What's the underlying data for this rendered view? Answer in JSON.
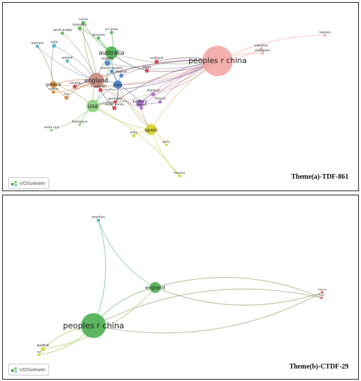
{
  "branding": {
    "vosviewer_label": "VOSviewer"
  },
  "panel_a": {
    "caption": "Theme(a)-TDF-861",
    "nodes": [
      {
        "id": "china",
        "label": "peoples r china",
        "color": "#f2a7a4"
      },
      {
        "id": "australia",
        "label": "australia",
        "color": "#4caf50"
      },
      {
        "id": "england",
        "label": "england",
        "color": "#c98a7f"
      },
      {
        "id": "usa",
        "label": "usa",
        "color": "#8cd07a"
      },
      {
        "id": "spain",
        "label": "spain",
        "color": "#d8d42c"
      },
      {
        "id": "italy",
        "label": "italy",
        "color": "#4a7fc7"
      },
      {
        "id": "turkey",
        "label": "turkey",
        "color": "#a56ad1"
      },
      {
        "id": "greece",
        "label": "greece",
        "color": "#d7873a"
      },
      {
        "id": "russia",
        "label": "russia",
        "color": "#5cb65c"
      },
      {
        "id": "malaysia",
        "label": "malaysia",
        "color": "#5cb65c"
      },
      {
        "id": "saudi_arabia",
        "label": "saudi arabia",
        "color": "#5cb65c"
      },
      {
        "id": "slovenia",
        "label": "slovenia",
        "color": "#5cb65c"
      },
      {
        "id": "sri_lanka",
        "label": "sri lanka",
        "color": "#5cb65c"
      },
      {
        "id": "bahrain",
        "label": "bahrain",
        "color": "#4fb3c9"
      },
      {
        "id": "india",
        "label": "india",
        "color": "#4fb3c9"
      },
      {
        "id": "poland",
        "label": "poland",
        "color": "#4fb3c9"
      },
      {
        "id": "croatia",
        "label": "croatia",
        "color": "#4a7fc7"
      },
      {
        "id": "france",
        "label": "france",
        "color": "#4a7fc7"
      },
      {
        "id": "czech_republic",
        "label": "czech republic",
        "color": "#4a7fc7"
      },
      {
        "id": "sweden",
        "label": "sweden",
        "color": "#c44"
      },
      {
        "id": "canada",
        "label": "canada",
        "color": "#c44"
      },
      {
        "id": "cyprus",
        "label": "cyprus",
        "color": "#d7873a"
      },
      {
        "id": "iran",
        "label": "iran",
        "color": "#d7873a"
      },
      {
        "id": "germany",
        "label": "germany",
        "color": "#c44"
      },
      {
        "id": "south_korea",
        "label": "south korea",
        "color": "#c44"
      },
      {
        "id": "japan",
        "label": "japan",
        "color": "#c44"
      },
      {
        "id": "scotland",
        "label": "scotland",
        "color": "#c44"
      },
      {
        "id": "finland",
        "label": "finland",
        "color": "#a56ad1"
      },
      {
        "id": "thailand",
        "label": "thailand",
        "color": "#a56ad1"
      },
      {
        "id": "taiwan",
        "label": "taiwan",
        "color": "#a56ad1"
      },
      {
        "id": "botswana",
        "label": "botswana",
        "color": "#8cd07a"
      },
      {
        "id": "costa_rica",
        "label": "costa rica",
        "color": "#8cd07a"
      },
      {
        "id": "chile",
        "label": "chile",
        "color": "#d8d42c"
      },
      {
        "id": "peru",
        "label": "peru",
        "color": "#d8d42c"
      },
      {
        "id": "mexico",
        "label": "mexico",
        "color": "#d8d42c"
      },
      {
        "id": "pakistan",
        "label": "pakistan",
        "color": "#f2a7a4"
      },
      {
        "id": "singapore",
        "label": "singapore",
        "color": "#f2a7a4"
      },
      {
        "id": "kosovo",
        "label": "kosovo",
        "color": "#f2a7a4"
      }
    ]
  },
  "panel_b": {
    "caption": "Theme(b)-CTDF-29",
    "nodes": [
      {
        "id": "china",
        "label": "peoples r china",
        "color": "#4caf50"
      },
      {
        "id": "england",
        "label": "england",
        "color": "#4caf50"
      },
      {
        "id": "mauritius",
        "label": "mauritius",
        "color": "#4fb3c9"
      },
      {
        "id": "austria",
        "label": "austria",
        "color": "#d8d42c"
      },
      {
        "id": "usa",
        "label": "usa",
        "color": "#d8d42c"
      },
      {
        "id": "france",
        "label": "france",
        "color": "#e06b6b"
      },
      {
        "id": "italy",
        "label": "italy",
        "color": "#e06b6b"
      }
    ]
  }
}
